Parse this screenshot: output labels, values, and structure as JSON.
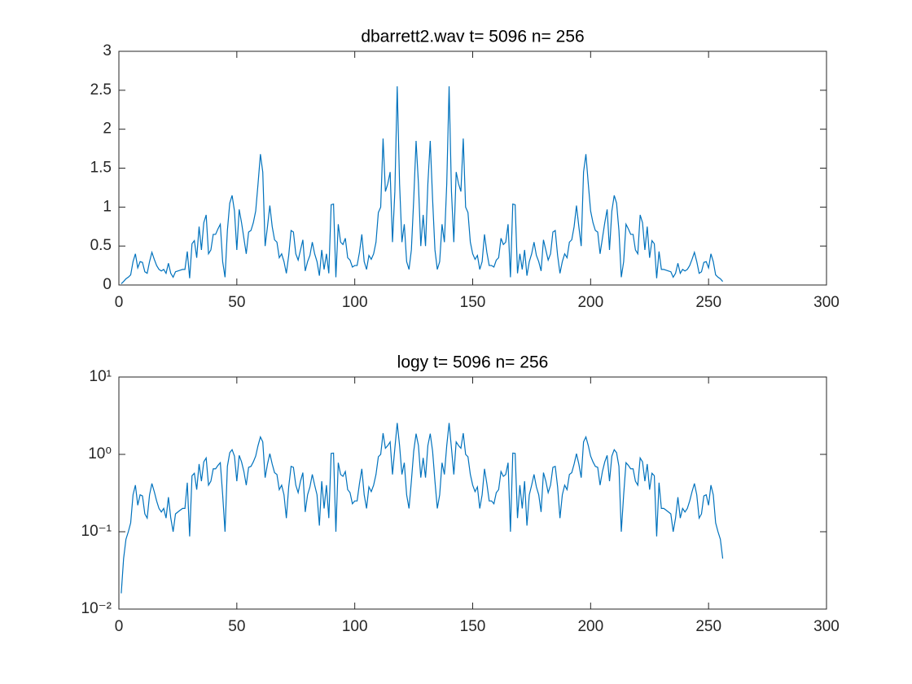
{
  "chart_data": [
    {
      "type": "line",
      "title": "dbarrett2.wav  t= 5096 n= 256",
      "x": [
        1,
        2,
        3,
        4,
        5,
        6,
        7,
        8,
        9,
        10,
        11,
        12,
        13,
        14,
        15,
        16,
        17,
        18,
        19,
        20,
        21,
        22,
        23,
        24,
        25,
        26,
        27,
        28,
        29,
        30,
        31,
        32,
        33,
        34,
        35,
        36,
        37,
        38,
        39,
        40,
        41,
        42,
        43,
        44,
        45,
        46,
        47,
        48,
        49,
        50,
        51,
        52,
        53,
        54,
        55,
        56,
        57,
        58,
        59,
        60,
        61,
        62,
        63,
        64,
        65,
        66,
        67,
        68,
        69,
        70,
        71,
        72,
        73,
        74,
        75,
        76,
        77,
        78,
        79,
        80,
        81,
        82,
        83,
        84,
        85,
        86,
        87,
        88,
        89,
        90,
        91,
        92,
        93,
        94,
        95,
        96,
        97,
        98,
        99,
        100,
        101,
        102,
        103,
        104,
        105,
        106,
        107,
        108,
        109,
        110,
        111,
        112,
        113,
        114,
        115,
        116,
        117,
        118,
        119,
        120,
        121,
        122,
        123,
        124,
        125,
        126,
        127,
        128,
        129,
        130,
        131,
        132,
        133,
        134,
        135,
        136,
        137,
        138,
        139,
        140,
        141,
        142,
        143,
        144,
        145,
        146,
        147,
        148,
        149,
        150,
        151,
        152,
        153,
        154,
        155,
        156,
        157,
        158,
        159,
        160,
        161,
        162,
        163,
        164,
        165,
        166,
        167,
        168,
        169,
        170,
        171,
        172,
        173,
        174,
        175,
        176,
        177,
        178,
        179,
        180,
        181,
        182,
        183,
        184,
        185,
        186,
        187,
        188,
        189,
        190,
        191,
        192,
        193,
        194,
        195,
        196,
        197,
        198,
        199,
        200,
        201,
        202,
        203,
        204,
        205,
        206,
        207,
        208,
        209,
        210,
        211,
        212,
        213,
        214,
        215,
        216,
        217,
        218,
        219,
        220,
        221,
        222,
        223,
        224,
        225,
        226,
        227,
        228,
        229,
        230,
        231,
        232,
        233,
        234,
        235,
        236,
        237,
        238,
        239,
        240,
        241,
        242,
        243,
        244,
        245,
        246,
        247,
        248,
        249,
        250,
        251,
        252,
        253,
        254,
        255,
        256
      ],
      "series": [
        {
          "color": "#0072bd",
          "values": [
            0.016,
            0.045,
            0.08,
            0.1,
            0.13,
            0.3,
            0.4,
            0.22,
            0.3,
            0.29,
            0.17,
            0.15,
            0.3,
            0.42,
            0.33,
            0.25,
            0.2,
            0.18,
            0.2,
            0.15,
            0.28,
            0.15,
            0.1,
            0.17,
            0.18,
            0.19,
            0.2,
            0.2,
            0.43,
            0.087,
            0.53,
            0.57,
            0.35,
            0.75,
            0.45,
            0.8,
            0.9,
            0.4,
            0.45,
            0.65,
            0.65,
            0.72,
            0.78,
            0.3,
            0.1,
            0.7,
            1.05,
            1.15,
            0.95,
            0.45,
            0.97,
            0.8,
            0.6,
            0.4,
            0.68,
            0.7,
            0.8,
            0.95,
            1.3,
            1.68,
            1.45,
            0.5,
            0.75,
            1.02,
            0.75,
            0.58,
            0.55,
            0.35,
            0.4,
            0.3,
            0.15,
            0.38,
            0.7,
            0.68,
            0.4,
            0.32,
            0.45,
            0.58,
            0.18,
            0.3,
            0.38,
            0.55,
            0.4,
            0.3,
            0.12,
            0.45,
            0.2,
            0.4,
            0.15,
            1.03,
            1.04,
            0.1,
            0.78,
            0.55,
            0.52,
            0.6,
            0.35,
            0.32,
            0.23,
            0.25,
            0.25,
            0.42,
            0.65,
            0.3,
            0.2,
            0.38,
            0.33,
            0.4,
            0.55,
            0.93,
            1.0,
            1.88,
            1.2,
            1.3,
            1.45,
            0.55,
            1.2,
            2.55,
            1.3,
            0.55,
            0.78,
            0.3,
            0.2,
            0.45,
            1.1,
            1.85,
            1.3,
            0.5,
            0.9,
            0.5,
            1.3,
            1.85,
            1.1,
            0.45,
            0.2,
            0.3,
            0.78,
            0.55,
            1.3,
            2.55,
            1.2,
            0.55,
            1.45,
            1.3,
            1.2,
            1.88,
            1.0,
            0.93,
            0.55,
            0.4,
            0.33,
            0.38,
            0.2,
            0.3,
            0.65,
            0.42,
            0.25,
            0.25,
            0.23,
            0.32,
            0.35,
            0.6,
            0.52,
            0.55,
            0.78,
            0.1,
            1.04,
            1.03,
            0.15,
            0.4,
            0.2,
            0.45,
            0.12,
            0.3,
            0.4,
            0.55,
            0.38,
            0.3,
            0.18,
            0.58,
            0.45,
            0.32,
            0.4,
            0.68,
            0.7,
            0.38,
            0.15,
            0.3,
            0.4,
            0.35,
            0.55,
            0.58,
            0.75,
            1.02,
            0.75,
            0.5,
            1.45,
            1.68,
            1.3,
            0.95,
            0.8,
            0.7,
            0.68,
            0.4,
            0.6,
            0.8,
            0.97,
            0.45,
            0.95,
            1.15,
            1.05,
            0.7,
            0.1,
            0.3,
            0.78,
            0.72,
            0.65,
            0.65,
            0.45,
            0.4,
            0.9,
            0.8,
            0.45,
            0.75,
            0.35,
            0.57,
            0.53,
            0.087,
            0.43,
            0.2,
            0.2,
            0.19,
            0.18,
            0.17,
            0.1,
            0.15,
            0.28,
            0.15,
            0.2,
            0.18,
            0.2,
            0.25,
            0.33,
            0.42,
            0.3,
            0.15,
            0.17,
            0.29,
            0.3,
            0.22,
            0.4,
            0.3,
            0.13,
            0.1,
            0.08,
            0.045
          ]
        }
      ],
      "xlim": [
        0,
        300
      ],
      "xticks": [
        0,
        50,
        100,
        150,
        200,
        250,
        300
      ],
      "ylim": [
        0,
        3
      ],
      "yticks": [
        0,
        0.5,
        1,
        1.5,
        2,
        2.5,
        3
      ]
    },
    {
      "type": "line",
      "title": "logy t= 5096 n= 256",
      "x": [
        1,
        2,
        3,
        4,
        5,
        6,
        7,
        8,
        9,
        10,
        11,
        12,
        13,
        14,
        15,
        16,
        17,
        18,
        19,
        20,
        21,
        22,
        23,
        24,
        25,
        26,
        27,
        28,
        29,
        30,
        31,
        32,
        33,
        34,
        35,
        36,
        37,
        38,
        39,
        40,
        41,
        42,
        43,
        44,
        45,
        46,
        47,
        48,
        49,
        50,
        51,
        52,
        53,
        54,
        55,
        56,
        57,
        58,
        59,
        60,
        61,
        62,
        63,
        64,
        65,
        66,
        67,
        68,
        69,
        70,
        71,
        72,
        73,
        74,
        75,
        76,
        77,
        78,
        79,
        80,
        81,
        82,
        83,
        84,
        85,
        86,
        87,
        88,
        89,
        90,
        91,
        92,
        93,
        94,
        95,
        96,
        97,
        98,
        99,
        100,
        101,
        102,
        103,
        104,
        105,
        106,
        107,
        108,
        109,
        110,
        111,
        112,
        113,
        114,
        115,
        116,
        117,
        118,
        119,
        120,
        121,
        122,
        123,
        124,
        125,
        126,
        127,
        128,
        129,
        130,
        131,
        132,
        133,
        134,
        135,
        136,
        137,
        138,
        139,
        140,
        141,
        142,
        143,
        144,
        145,
        146,
        147,
        148,
        149,
        150,
        151,
        152,
        153,
        154,
        155,
        156,
        157,
        158,
        159,
        160,
        161,
        162,
        163,
        164,
        165,
        166,
        167,
        168,
        169,
        170,
        171,
        172,
        173,
        174,
        175,
        176,
        177,
        178,
        179,
        180,
        181,
        182,
        183,
        184,
        185,
        186,
        187,
        188,
        189,
        190,
        191,
        192,
        193,
        194,
        195,
        196,
        197,
        198,
        199,
        200,
        201,
        202,
        203,
        204,
        205,
        206,
        207,
        208,
        209,
        210,
        211,
        212,
        213,
        214,
        215,
        216,
        217,
        218,
        219,
        220,
        221,
        222,
        223,
        224,
        225,
        226,
        227,
        228,
        229,
        230,
        231,
        232,
        233,
        234,
        235,
        236,
        237,
        238,
        239,
        240,
        241,
        242,
        243,
        244,
        245,
        246,
        247,
        248,
        249,
        250,
        251,
        252,
        253,
        254,
        255,
        256
      ],
      "series": [
        {
          "color": "#0072bd",
          "values": [
            0.016,
            0.045,
            0.08,
            0.1,
            0.13,
            0.3,
            0.4,
            0.22,
            0.3,
            0.29,
            0.17,
            0.15,
            0.3,
            0.42,
            0.33,
            0.25,
            0.2,
            0.18,
            0.2,
            0.15,
            0.28,
            0.15,
            0.1,
            0.17,
            0.18,
            0.19,
            0.2,
            0.2,
            0.43,
            0.087,
            0.53,
            0.57,
            0.35,
            0.75,
            0.45,
            0.8,
            0.9,
            0.4,
            0.45,
            0.65,
            0.65,
            0.72,
            0.78,
            0.3,
            0.1,
            0.7,
            1.05,
            1.15,
            0.95,
            0.45,
            0.97,
            0.8,
            0.6,
            0.4,
            0.68,
            0.7,
            0.8,
            0.95,
            1.3,
            1.68,
            1.45,
            0.5,
            0.75,
            1.02,
            0.75,
            0.58,
            0.55,
            0.35,
            0.4,
            0.3,
            0.15,
            0.38,
            0.7,
            0.68,
            0.4,
            0.32,
            0.45,
            0.58,
            0.18,
            0.3,
            0.38,
            0.55,
            0.4,
            0.3,
            0.12,
            0.45,
            0.2,
            0.4,
            0.15,
            1.03,
            1.04,
            0.1,
            0.78,
            0.55,
            0.52,
            0.6,
            0.35,
            0.32,
            0.23,
            0.25,
            0.25,
            0.42,
            0.65,
            0.3,
            0.2,
            0.38,
            0.33,
            0.4,
            0.55,
            0.93,
            1.0,
            1.88,
            1.2,
            1.3,
            1.45,
            0.55,
            1.2,
            2.55,
            1.3,
            0.55,
            0.78,
            0.3,
            0.2,
            0.45,
            1.1,
            1.85,
            1.3,
            0.5,
            0.9,
            0.5,
            1.3,
            1.85,
            1.1,
            0.45,
            0.2,
            0.3,
            0.78,
            0.55,
            1.3,
            2.55,
            1.2,
            0.55,
            1.45,
            1.3,
            1.2,
            1.88,
            1.0,
            0.93,
            0.55,
            0.4,
            0.33,
            0.38,
            0.2,
            0.3,
            0.65,
            0.42,
            0.25,
            0.25,
            0.23,
            0.32,
            0.35,
            0.6,
            0.52,
            0.55,
            0.78,
            0.1,
            1.04,
            1.03,
            0.15,
            0.4,
            0.2,
            0.45,
            0.12,
            0.3,
            0.4,
            0.55,
            0.38,
            0.3,
            0.18,
            0.58,
            0.45,
            0.32,
            0.4,
            0.68,
            0.7,
            0.38,
            0.15,
            0.3,
            0.4,
            0.35,
            0.55,
            0.58,
            0.75,
            1.02,
            0.75,
            0.5,
            1.45,
            1.68,
            1.3,
            0.95,
            0.8,
            0.7,
            0.68,
            0.4,
            0.6,
            0.8,
            0.97,
            0.45,
            0.95,
            1.15,
            1.05,
            0.7,
            0.1,
            0.3,
            0.78,
            0.72,
            0.65,
            0.65,
            0.45,
            0.4,
            0.9,
            0.8,
            0.45,
            0.75,
            0.35,
            0.57,
            0.53,
            0.087,
            0.43,
            0.2,
            0.2,
            0.19,
            0.18,
            0.17,
            0.1,
            0.15,
            0.28,
            0.15,
            0.2,
            0.18,
            0.2,
            0.25,
            0.33,
            0.42,
            0.3,
            0.15,
            0.17,
            0.29,
            0.3,
            0.22,
            0.4,
            0.3,
            0.13,
            0.1,
            0.08,
            0.045
          ]
        }
      ],
      "xlim": [
        0,
        300
      ],
      "xticks": [
        0,
        50,
        100,
        150,
        200,
        250,
        300
      ],
      "ylog": true,
      "ylim": [
        0.01,
        10
      ],
      "yticks": [
        {
          "value": 0.01,
          "label": "10⁻²"
        },
        {
          "value": 0.1,
          "label": "10⁻¹"
        },
        {
          "value": 1,
          "label": "10⁰"
        },
        {
          "value": 10,
          "label": "10¹"
        }
      ]
    }
  ]
}
